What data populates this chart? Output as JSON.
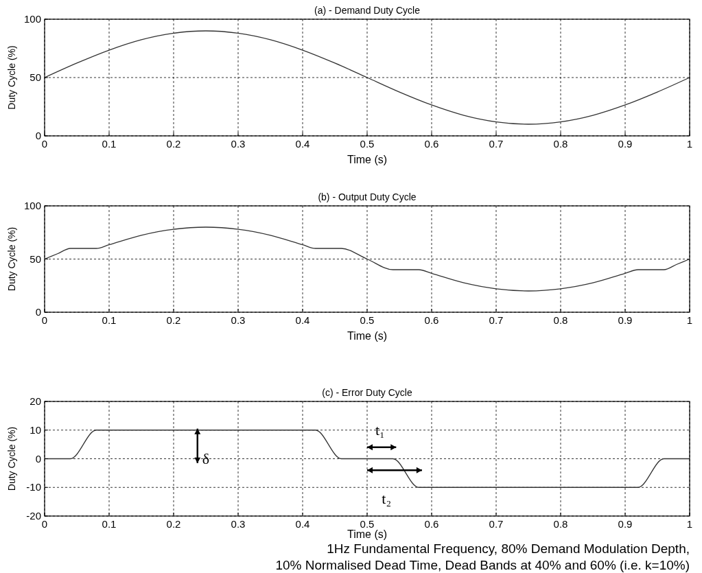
{
  "chart_data": [
    {
      "type": "line",
      "title": "(a) - Demand Duty Cycle",
      "xlabel": "Time (s)",
      "ylabel": "Duty Cycle (%)",
      "x": [
        0,
        0.05,
        0.1,
        0.15,
        0.2,
        0.25,
        0.3,
        0.35,
        0.4,
        0.45,
        0.5,
        0.55,
        0.6,
        0.65,
        0.7,
        0.75,
        0.8,
        0.85,
        0.9,
        0.95,
        1
      ],
      "series": [
        {
          "color": "#333333",
          "values": [
            50,
            62.4,
            73.5,
            82.4,
            88,
            90,
            88,
            82.4,
            73.5,
            62.4,
            50,
            37.6,
            26.5,
            17.6,
            12,
            10,
            12,
            17.6,
            26.5,
            37.6,
            50
          ]
        }
      ],
      "xlim": [
        0,
        1
      ],
      "xticks": [
        0,
        0.1,
        0.2,
        0.3,
        0.4,
        0.5,
        0.6,
        0.7,
        0.8,
        0.9,
        1
      ],
      "ylim": [
        0,
        100
      ],
      "yticks": [
        0,
        50,
        100
      ],
      "grid": true
    },
    {
      "type": "line",
      "title": "(b) - Output Duty Cycle",
      "xlabel": "Time (s)",
      "ylabel": "Duty Cycle (%)",
      "x": [
        0,
        0.02,
        0.04,
        0.08,
        0.1,
        0.15,
        0.2,
        0.25,
        0.3,
        0.35,
        0.4,
        0.42,
        0.46,
        0.5,
        0.54,
        0.58,
        0.6,
        0.65,
        0.7,
        0.75,
        0.8,
        0.85,
        0.9,
        0.92,
        0.96,
        0.98,
        1
      ],
      "series": [
        {
          "color": "#333333",
          "values": [
            50,
            55,
            60,
            60,
            63.5,
            72.4,
            78,
            80,
            78,
            72.4,
            63.5,
            60,
            60,
            50,
            40,
            40,
            36.5,
            27.6,
            22,
            20,
            22,
            27.6,
            36.5,
            40,
            40,
            45,
            50
          ]
        }
      ],
      "xlim": [
        0,
        1
      ],
      "xticks": [
        0,
        0.1,
        0.2,
        0.3,
        0.4,
        0.5,
        0.6,
        0.7,
        0.8,
        0.9,
        1
      ],
      "ylim": [
        0,
        100
      ],
      "yticks": [
        0,
        50,
        100
      ],
      "grid": true
    },
    {
      "type": "line",
      "title": "(c) - Error Duty Cycle",
      "xlabel": "Time (s)",
      "ylabel": "Duty Cycle (%)",
      "x": [
        0,
        0.04,
        0.08,
        0.42,
        0.46,
        0.54,
        0.58,
        0.92,
        0.96,
        1
      ],
      "series": [
        {
          "color": "#333333",
          "values": [
            0,
            0,
            10,
            10,
            0,
            0,
            -10,
            -10,
            0,
            0
          ]
        }
      ],
      "xlim": [
        0,
        1
      ],
      "xticks": [
        0,
        0.1,
        0.2,
        0.3,
        0.4,
        0.5,
        0.6,
        0.7,
        0.8,
        0.9,
        1
      ],
      "ylim": [
        -20,
        20
      ],
      "yticks": [
        -20,
        -10,
        0,
        10,
        20
      ],
      "grid": true,
      "annotations": [
        "δ",
        "t₁",
        "t₂",
        "1Hz Fundamental Frequency, 80% Demand Modulation Depth,",
        "10% Normalised Dead Time, Dead Bands at 40% and 60% (i.e. k=10%)"
      ]
    }
  ]
}
